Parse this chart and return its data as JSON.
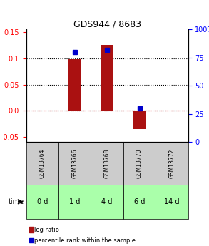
{
  "title": "GDS944 / 8683",
  "samples": [
    "GSM13764",
    "GSM13766",
    "GSM13768",
    "GSM13770",
    "GSM13772"
  ],
  "time_labels": [
    "0 d",
    "1 d",
    "4 d",
    "6 d",
    "14 d"
  ],
  "log_ratios": [
    0.0,
    0.098,
    0.125,
    -0.035,
    0.0
  ],
  "percentile_ranks": [
    null,
    80.0,
    82.0,
    30.0,
    null
  ],
  "ylim_left": [
    -0.06,
    0.155
  ],
  "ylim_right": [
    0,
    100
  ],
  "left_yticks": [
    -0.05,
    0.0,
    0.05,
    0.1,
    0.15
  ],
  "right_yticks": [
    0,
    25,
    50,
    75,
    100
  ],
  "bar_color": "#aa1111",
  "dot_color": "#0000cc",
  "grid_lines": [
    0.0,
    0.05,
    0.1
  ],
  "zero_line": 0.0,
  "sample_box_color": "#cccccc",
  "time_box_color": "#aaffaa",
  "legend_bar_color": "#aa1111",
  "legend_dot_color": "#0000cc",
  "bar_width": 0.4
}
